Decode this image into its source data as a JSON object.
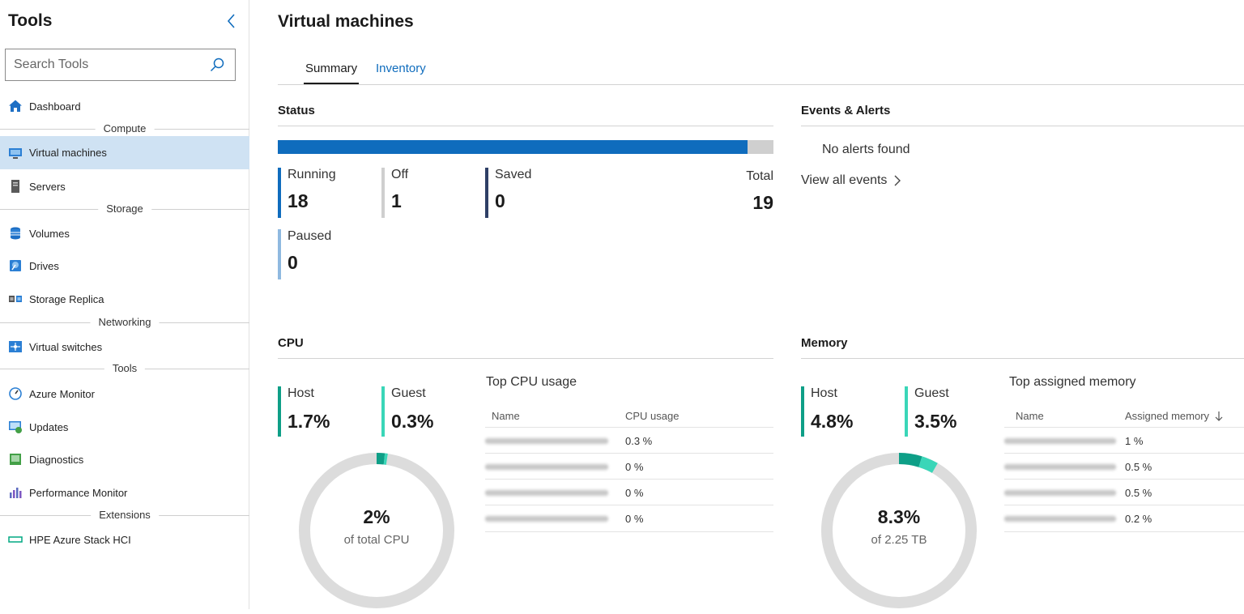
{
  "sidebar": {
    "title": "Tools",
    "search_placeholder": "Search Tools",
    "sections": {
      "compute": "Compute",
      "storage": "Storage",
      "networking": "Networking",
      "tools": "Tools",
      "extensions": "Extensions"
    },
    "items": {
      "dashboard": "Dashboard",
      "virtual_machines": "Virtual machines",
      "servers": "Servers",
      "volumes": "Volumes",
      "drives": "Drives",
      "storage_replica": "Storage Replica",
      "virtual_switches": "Virtual switches",
      "azure_monitor": "Azure Monitor",
      "updates": "Updates",
      "diagnostics": "Diagnostics",
      "performance_monitor": "Performance Monitor",
      "hpe": "HPE Azure Stack HCI"
    }
  },
  "main": {
    "title": "Virtual machines",
    "tabs": {
      "summary": "Summary",
      "inventory": "Inventory"
    },
    "status": {
      "title": "Status",
      "progress_fraction": 0.947,
      "running": {
        "label": "Running",
        "value": "18"
      },
      "off": {
        "label": "Off",
        "value": "1"
      },
      "saved": {
        "label": "Saved",
        "value": "0"
      },
      "paused": {
        "label": "Paused",
        "value": "0"
      },
      "total": {
        "label": "Total",
        "value": "19"
      }
    },
    "events": {
      "title": "Events & Alerts",
      "no_alerts": "No alerts found",
      "view_all": "View all events"
    },
    "cpu": {
      "title": "CPU",
      "host": {
        "label": "Host",
        "value": "1.7%"
      },
      "guest": {
        "label": "Guest",
        "value": "0.3%"
      },
      "donut_value": "2%",
      "donut_sub": "of total CPU",
      "host_fraction": 0.017,
      "guest_fraction": 0.003,
      "top_title": "Top CPU usage",
      "col_name": "Name",
      "col_value": "CPU usage",
      "rows": [
        "0.3 %",
        "0 %",
        "0 %",
        "0 %"
      ]
    },
    "memory": {
      "title": "Memory",
      "host": {
        "label": "Host",
        "value": "4.8%"
      },
      "guest": {
        "label": "Guest",
        "value": "3.5%"
      },
      "donut_value": "8.3%",
      "donut_sub": "of 2.25 TB",
      "host_fraction": 0.048,
      "guest_fraction": 0.035,
      "top_title": "Top assigned memory",
      "col_name": "Name",
      "col_value": "Assigned memory",
      "rows": [
        "1 %",
        "0.5 %",
        "0.5 %",
        "0.2 %"
      ]
    },
    "colors": {
      "accent": "#0f6cbd",
      "host": "#0e9f87",
      "guest": "#3ad6b8",
      "track": "#dcdcdc",
      "off": "#cfcfcf",
      "saved": "#2e3f66",
      "paused": "#8fb9e0"
    }
  }
}
